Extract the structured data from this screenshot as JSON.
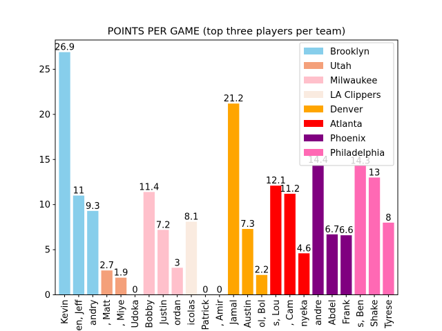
{
  "chart_data": {
    "type": "bar",
    "title": "POINTS PER GAME (top three players per team)",
    "xlabel": "",
    "ylabel": "",
    "ylim": [
      0,
      28.245
    ],
    "yticks": [
      0,
      5,
      10,
      15,
      20,
      25
    ],
    "grid": false,
    "legend_position": "top-right",
    "categories": [
      "Kevin",
      "en, Jeff",
      "andry",
      ", Matt",
      ", Miye",
      "Udoka",
      "Bobby",
      "Justin",
      "ordan",
      "icolas",
      "Patrick",
      ", Amir",
      "Jamal",
      "Austin",
      "ol, Bol",
      "s, Lou",
      ", Cam",
      "nyeka",
      "andre",
      "Abdel",
      "Frank",
      "s, Ben",
      "Shake",
      "Tyrese"
    ],
    "values": [
      26.9,
      11,
      9.3,
      2.7,
      1.9,
      0,
      11.4,
      7.2,
      3,
      8.1,
      0,
      0,
      21.2,
      7.3,
      2.2,
      12.1,
      11.2,
      4.6,
      14.4,
      6.7,
      6.6,
      14.3,
      13,
      8
    ],
    "value_labels": [
      "26.9",
      "11",
      "9.3",
      "2.7",
      "1.9",
      "0",
      "11.4",
      "7.2",
      "3",
      "8.1",
      "0",
      "0",
      "21.2",
      "7.3",
      "2.2",
      "12.1",
      "11.2",
      "4.6",
      "14.4",
      "6.7",
      "6.6",
      "14.3",
      "13",
      "8"
    ],
    "series": [
      {
        "name": "Brooklyn",
        "color": "#87ceeb",
        "indices": [
          0,
          1,
          2
        ]
      },
      {
        "name": "Utah",
        "color": "#f4a07a",
        "indices": [
          3,
          4,
          5
        ]
      },
      {
        "name": "Milwaukee",
        "color": "#ffc0cb",
        "indices": [
          6,
          7,
          8
        ]
      },
      {
        "name": "LA Clippers",
        "color": "#faebe0",
        "indices": [
          9,
          10,
          11
        ]
      },
      {
        "name": "Denver",
        "color": "#ffa500",
        "indices": [
          12,
          13,
          14
        ]
      },
      {
        "name": "Atlanta",
        "color": "#ff0000",
        "indices": [
          15,
          16,
          17
        ]
      },
      {
        "name": "Phoenix",
        "color": "#800080",
        "indices": [
          18,
          19,
          20
        ]
      },
      {
        "name": "Philadelphia",
        "color": "#ff69b4",
        "indices": [
          21,
          22,
          23
        ]
      }
    ]
  }
}
